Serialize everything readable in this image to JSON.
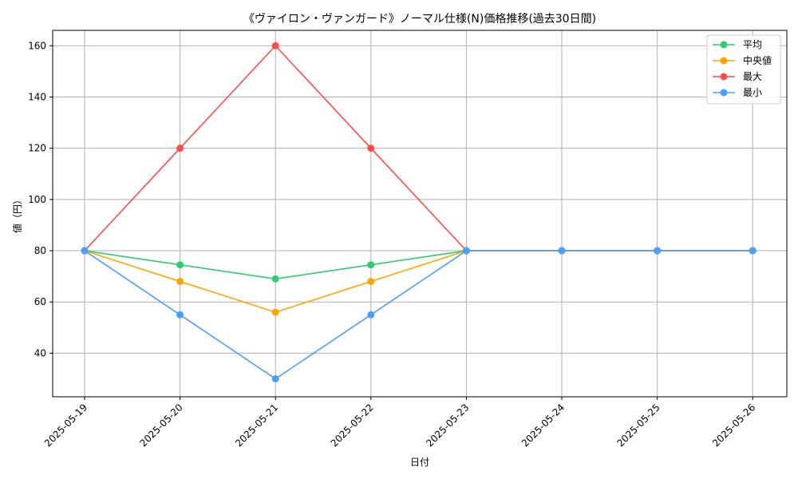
{
  "chart_data": {
    "type": "line",
    "title": "《ヴァイロン・ヴァンガード》ノーマル仕様(N)価格推移(過去30日間)",
    "xlabel": "日付",
    "ylabel": "値（円）",
    "categories": [
      "2025-05-19",
      "2025-05-20",
      "2025-05-21",
      "2025-05-22",
      "2025-05-23",
      "2025-05-24",
      "2025-05-25",
      "2025-05-26"
    ],
    "ylim": [
      23,
      166
    ],
    "yticks": [
      40,
      60,
      80,
      100,
      120,
      140,
      160
    ],
    "grid": true,
    "legend_position": "top-right",
    "series": [
      {
        "name": "平均",
        "color": "#2ecc71",
        "values": [
          80,
          74.5,
          69,
          74.5,
          80,
          80,
          80,
          80
        ]
      },
      {
        "name": "中央値",
        "color": "#ffa500",
        "values": [
          80,
          68,
          56,
          68,
          80,
          80,
          80,
          80
        ]
      },
      {
        "name": "最大",
        "color": "#ff4d4d",
        "values": [
          80,
          120,
          160,
          120,
          80,
          80,
          80,
          80
        ]
      },
      {
        "name": "最小",
        "color": "#4d9eff",
        "values": [
          80,
          55,
          30,
          55,
          80,
          80,
          80,
          80
        ]
      }
    ]
  }
}
